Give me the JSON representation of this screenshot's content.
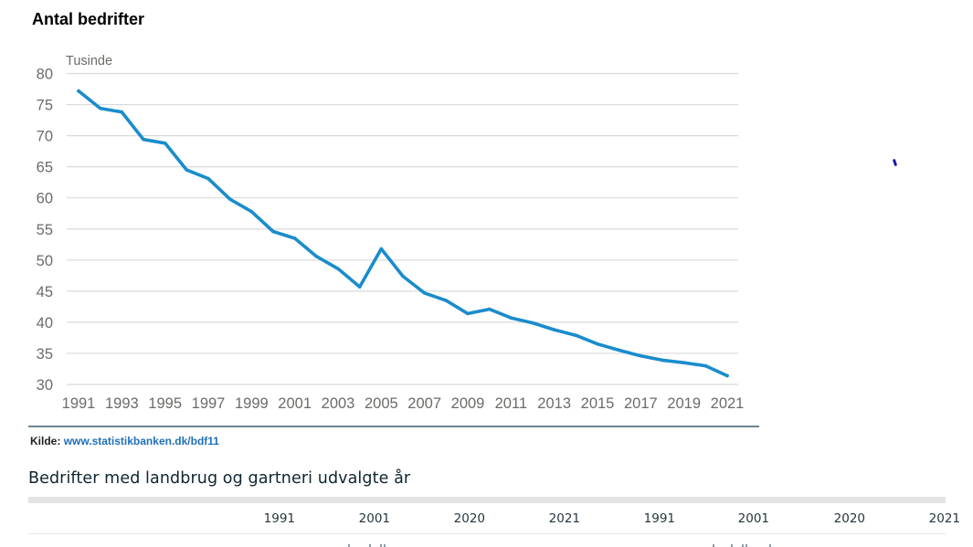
{
  "chart_title": "Antal bedrifter",
  "source": {
    "label": "Kilde:",
    "link_text": "www.statistikbanken.dk/bdf11"
  },
  "table": {
    "title": "Bedrifter med landbrug og gartneri udvalgte år",
    "column_headers": [
      "1991",
      "2001",
      "2020",
      "2021",
      "1991",
      "2001",
      "2020",
      "2021"
    ]
  },
  "colors": {
    "line": "#1a8ccc",
    "grid": "#d9d9d9",
    "separator": "#6e8590",
    "link": "#1f6fb8"
  },
  "chart_data": {
    "type": "line",
    "title": "Antal bedrifter",
    "ylabel": "Tusinde",
    "xlabel": "",
    "ylim": [
      30,
      80
    ],
    "xlim": [
      1991,
      2021
    ],
    "grid": true,
    "y_ticks": [
      80,
      75,
      70,
      65,
      60,
      55,
      50,
      45,
      40,
      35,
      30
    ],
    "x_ticks": [
      1991,
      1993,
      1995,
      1997,
      1999,
      2001,
      2003,
      2005,
      2007,
      2009,
      2011,
      2013,
      2015,
      2017,
      2019,
      2021
    ],
    "x_tick_labels": [
      "1991",
      "1993",
      "1995",
      "1997",
      "1999",
      "2001",
      "2003",
      "2005",
      "2007",
      "2009",
      "2011",
      "2013",
      "2015",
      "2017",
      "2019",
      "2021"
    ],
    "y_tick_labels": [
      "80",
      "75",
      "70",
      "65",
      "60",
      "55",
      "50",
      "45",
      "40",
      "35",
      "30"
    ],
    "series": [
      {
        "name": "Antal bedrifter",
        "x": [
          1991,
          1992,
          1993,
          1994,
          1995,
          1996,
          1997,
          1998,
          1999,
          2000,
          2001,
          2002,
          2003,
          2004,
          2005,
          2006,
          2007,
          2008,
          2009,
          2010,
          2011,
          2012,
          2013,
          2014,
          2015,
          2016,
          2017,
          2018,
          2019,
          2020,
          2021
        ],
        "values": [
          77.2,
          74.4,
          73.8,
          69.4,
          68.8,
          64.5,
          63.1,
          59.8,
          57.8,
          54.6,
          53.5,
          50.6,
          48.6,
          45.7,
          51.8,
          47.4,
          44.7,
          43.5,
          41.4,
          42.1,
          40.7,
          39.9,
          38.8,
          37.9,
          36.5,
          35.5,
          34.6,
          33.9,
          33.5,
          33.0,
          31.4
        ]
      }
    ]
  }
}
